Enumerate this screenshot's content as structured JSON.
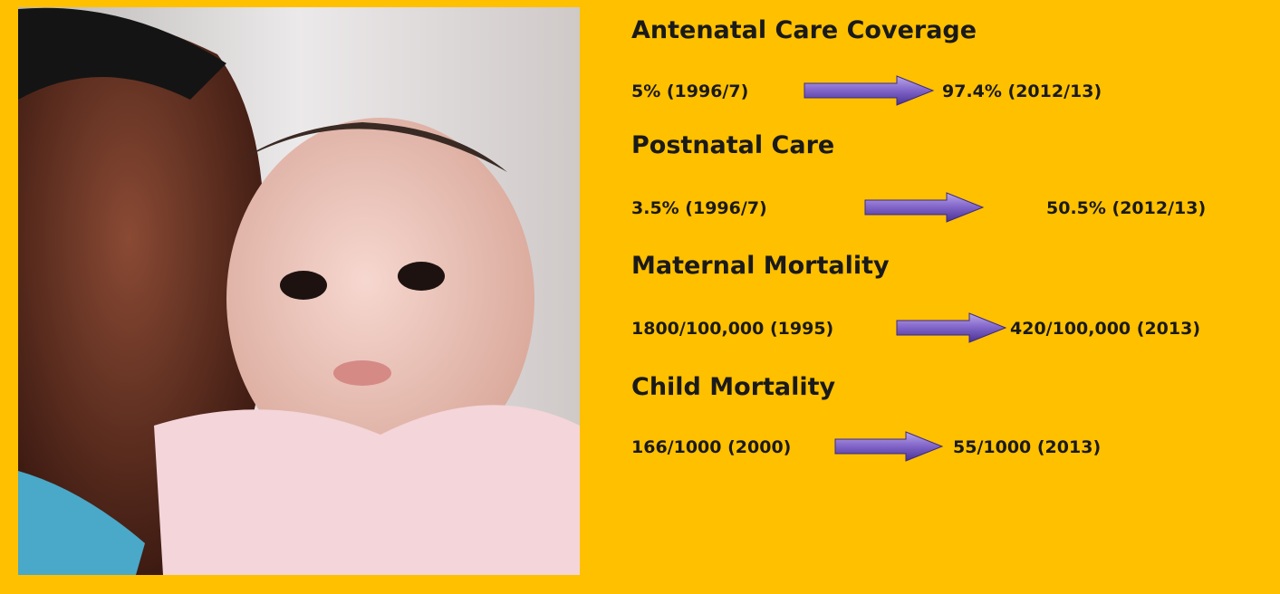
{
  "sections": [
    {
      "title": "Antenatal Care Coverage",
      "from": "5%  (1996/7)",
      "to": "97.4% (2012/13)"
    },
    {
      "title": "Postnatal Care",
      "from": "3.5%  (1996/7)",
      "to": "50.5% (2012/13)"
    },
    {
      "title": "Maternal Mortality",
      "from": "1800/100,000 (1995)",
      "to": "420/100,000 (2013)"
    },
    {
      "title": "Child Mortality",
      "from": "166/1000 (2000)",
      "to": "55/1000 (2013)"
    }
  ]
}
